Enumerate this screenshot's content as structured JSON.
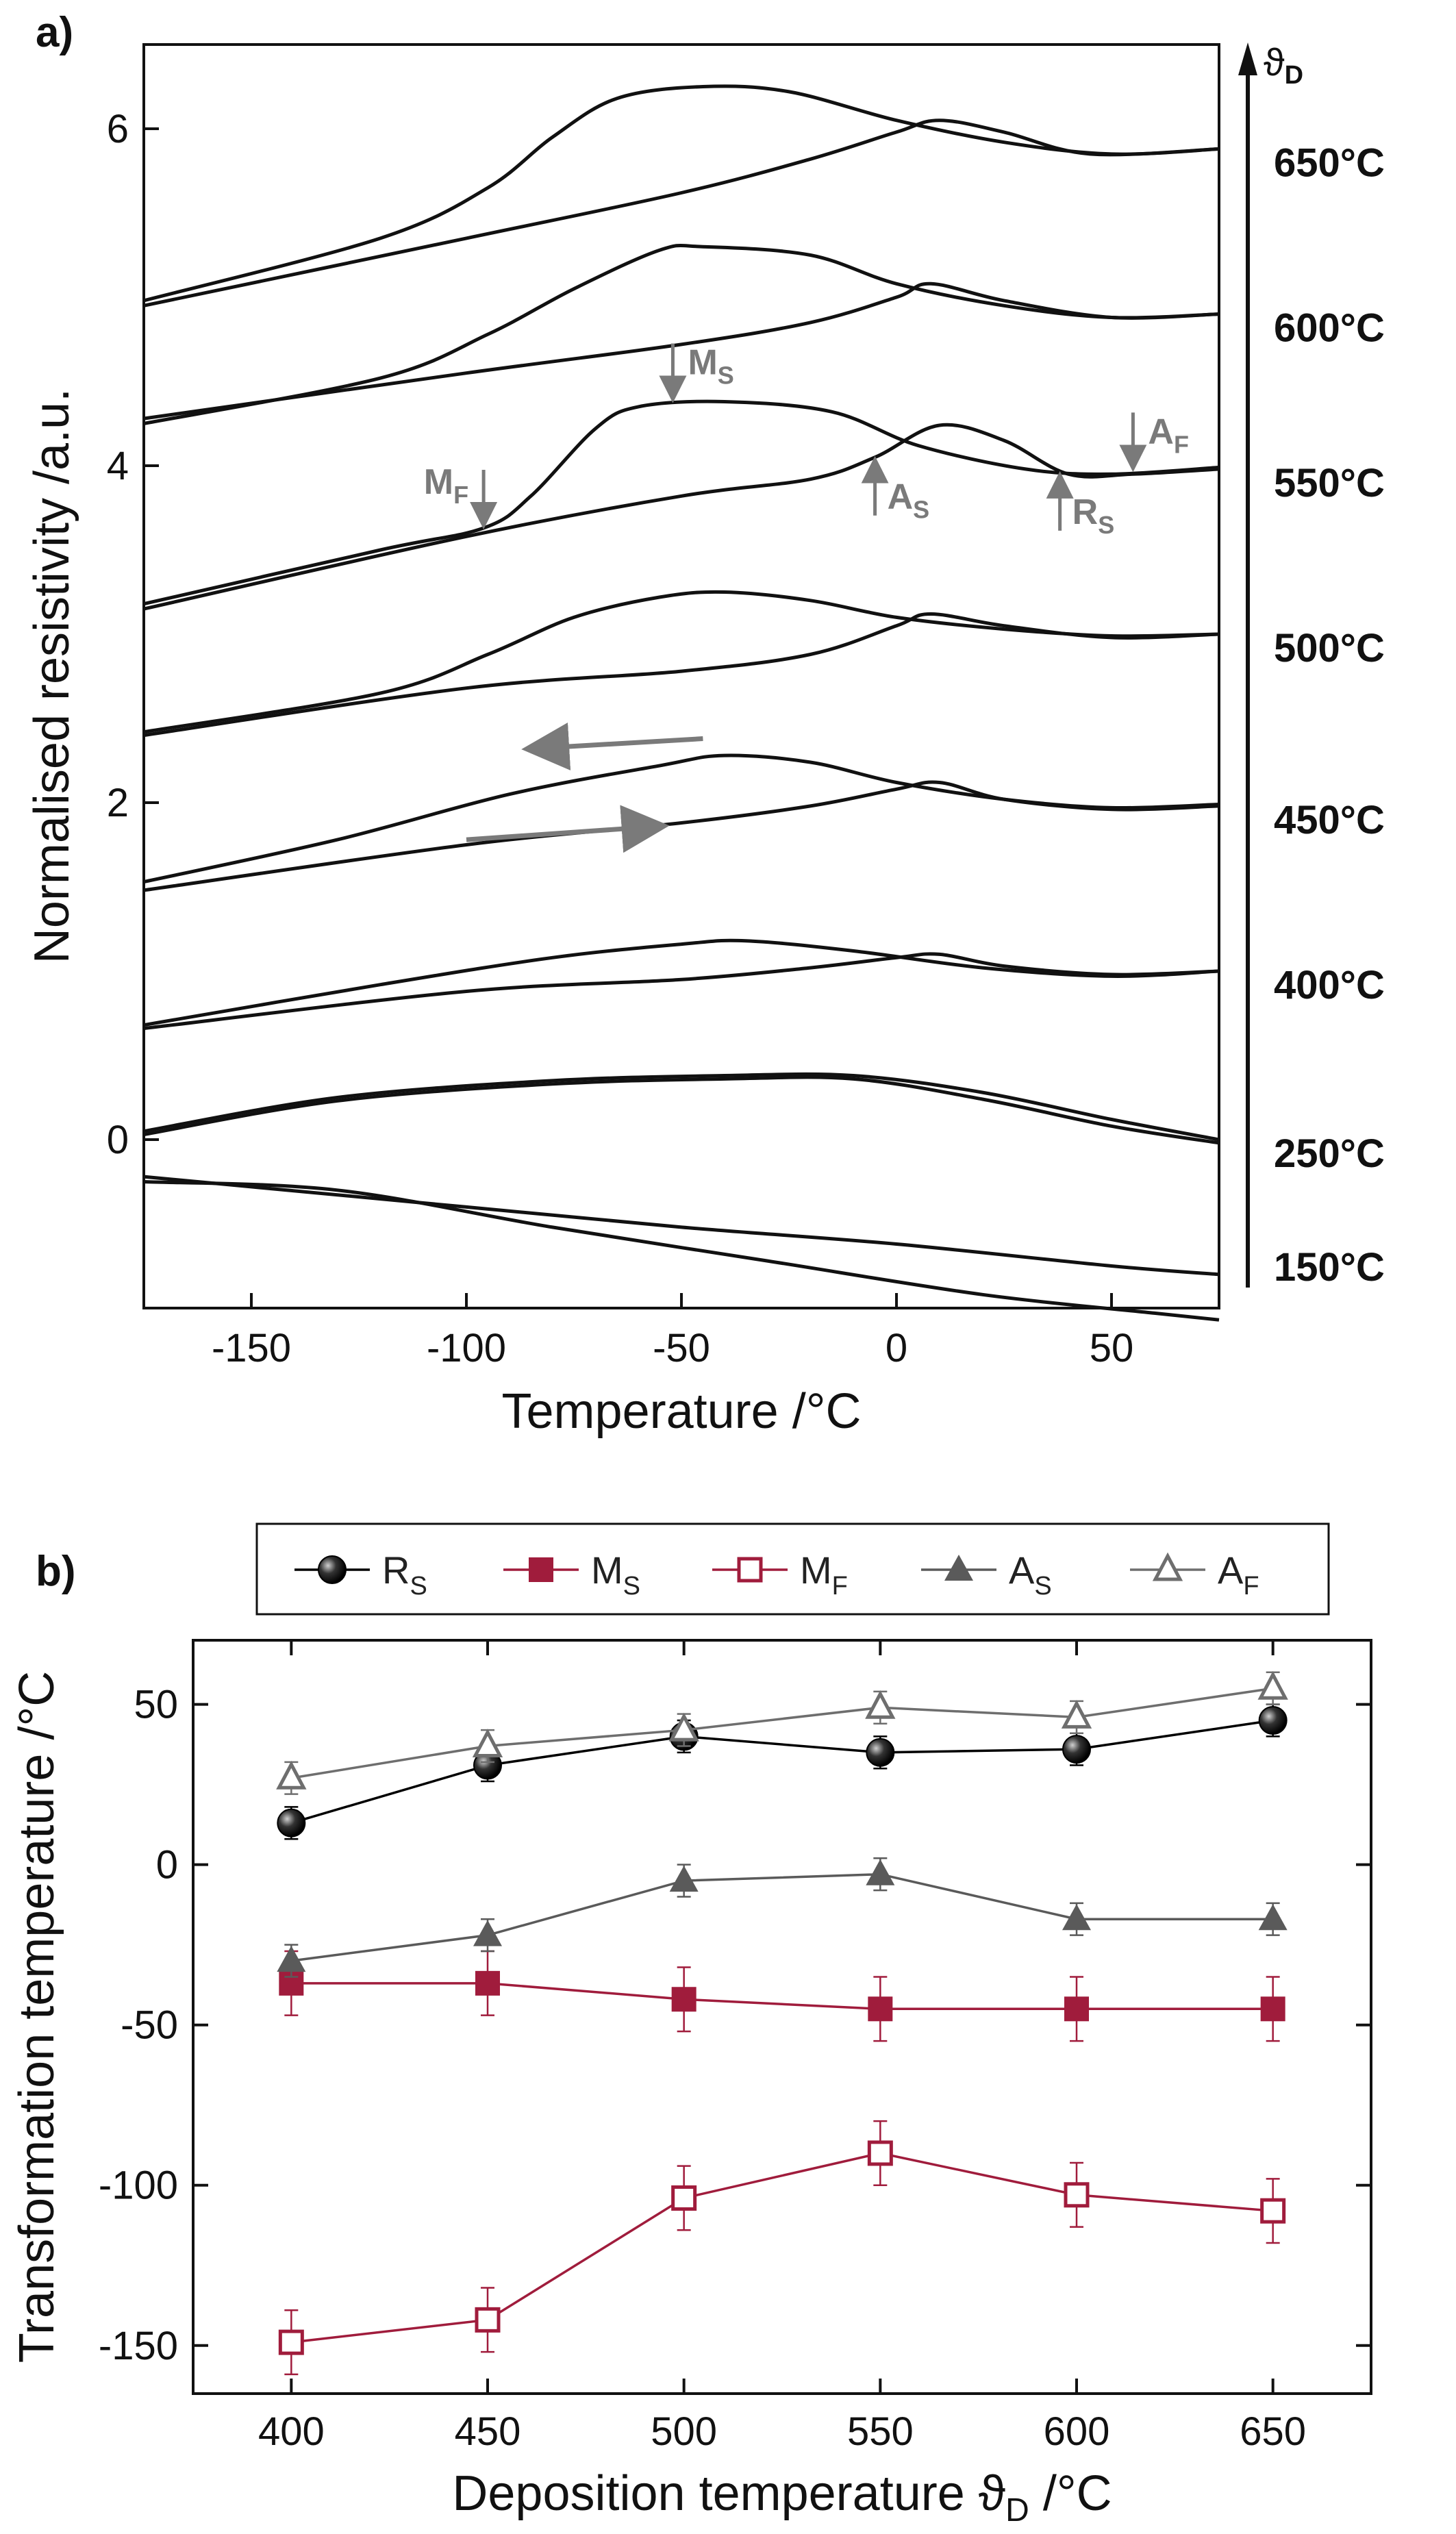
{
  "chart_data": [
    {
      "type": "line",
      "panel_label": "a)",
      "xlabel": "Temperature /°C",
      "ylabel": "Normalised resistivity /a.u.",
      "xlim": [
        -175,
        75
      ],
      "ylim": [
        -1.0,
        6.5
      ],
      "xticks": [
        "-150",
        "-100",
        "-50",
        "0",
        "50"
      ],
      "yticks": [
        "0",
        "2",
        "4",
        "6"
      ],
      "series_axis_label": "ϑD",
      "series_axis_symbol": "ϑ",
      "series_axis_sub": "D",
      "series": [
        {
          "name": "150°C",
          "heating": [
            [
              -175,
              -0.22
            ],
            [
              -150,
              -0.28
            ],
            [
              -100,
              -0.4
            ],
            [
              -50,
              -0.52
            ],
            [
              0,
              -0.62
            ],
            [
              50,
              -0.75
            ],
            [
              75,
              -0.8
            ]
          ],
          "cooling": [
            [
              -175,
              -0.25
            ],
            [
              -130,
              -0.3
            ],
            [
              -80,
              -0.52
            ],
            [
              -30,
              -0.72
            ],
            [
              20,
              -0.92
            ],
            [
              60,
              -1.03
            ],
            [
              75,
              -1.07
            ]
          ]
        },
        {
          "name": "250°C",
          "heating": [
            [
              -175,
              0.05
            ],
            [
              -130,
              0.25
            ],
            [
              -80,
              0.35
            ],
            [
              -40,
              0.38
            ],
            [
              -10,
              0.38
            ],
            [
              20,
              0.28
            ],
            [
              50,
              0.12
            ],
            [
              75,
              0.0
            ]
          ],
          "cooling": [
            [
              -175,
              0.03
            ],
            [
              -130,
              0.23
            ],
            [
              -80,
              0.33
            ],
            [
              -40,
              0.36
            ],
            [
              -10,
              0.36
            ],
            [
              20,
              0.24
            ],
            [
              50,
              0.08
            ],
            [
              75,
              -0.02
            ]
          ]
        },
        {
          "name": "400°C",
          "heating": [
            [
              -175,
              0.66
            ],
            [
              -100,
              0.88
            ],
            [
              -50,
              0.95
            ],
            [
              -20,
              1.02
            ],
            [
              0,
              1.08
            ],
            [
              10,
              1.1
            ],
            [
              25,
              1.03
            ],
            [
              50,
              0.98
            ],
            [
              75,
              1.0
            ]
          ],
          "cooling": [
            [
              -175,
              0.68
            ],
            [
              -120,
              0.92
            ],
            [
              -80,
              1.08
            ],
            [
              -50,
              1.16
            ],
            [
              -35,
              1.18
            ],
            [
              -10,
              1.12
            ],
            [
              20,
              1.02
            ],
            [
              50,
              0.97
            ],
            [
              75,
              1.0
            ]
          ]
        },
        {
          "name": "450°C",
          "heating": [
            [
              -175,
              1.48
            ],
            [
              -100,
              1.75
            ],
            [
              -50,
              1.88
            ],
            [
              -20,
              1.98
            ],
            [
              0,
              2.08
            ],
            [
              10,
              2.12
            ],
            [
              25,
              2.02
            ],
            [
              50,
              1.96
            ],
            [
              75,
              1.98
            ]
          ],
          "cooling": [
            [
              -175,
              1.53
            ],
            [
              -130,
              1.78
            ],
            [
              -90,
              2.05
            ],
            [
              -55,
              2.22
            ],
            [
              -40,
              2.28
            ],
            [
              -20,
              2.24
            ],
            [
              0,
              2.12
            ],
            [
              25,
              2.02
            ],
            [
              50,
              1.97
            ],
            [
              75,
              1.99
            ]
          ]
        },
        {
          "name": "500°C",
          "heating": [
            [
              -175,
              2.4
            ],
            [
              -100,
              2.68
            ],
            [
              -50,
              2.78
            ],
            [
              -20,
              2.88
            ],
            [
              0,
              3.05
            ],
            [
              8,
              3.12
            ],
            [
              25,
              3.05
            ],
            [
              50,
              2.98
            ],
            [
              75,
              3.0
            ]
          ],
          "cooling": [
            [
              -175,
              2.42
            ],
            [
              -120,
              2.65
            ],
            [
              -95,
              2.88
            ],
            [
              -75,
              3.1
            ],
            [
              -55,
              3.22
            ],
            [
              -40,
              3.25
            ],
            [
              -20,
              3.2
            ],
            [
              0,
              3.1
            ],
            [
              25,
              3.03
            ],
            [
              50,
              2.99
            ],
            [
              75,
              3.0
            ]
          ]
        },
        {
          "name": "550°C",
          "heating": [
            [
              -175,
              3.15
            ],
            [
              -100,
              3.58
            ],
            [
              -50,
              3.82
            ],
            [
              -20,
              3.92
            ],
            [
              -5,
              4.05
            ],
            [
              10,
              4.24
            ],
            [
              25,
              4.15
            ],
            [
              40,
              3.95
            ],
            [
              55,
              3.95
            ],
            [
              75,
              3.98
            ]
          ],
          "cooling": [
            [
              -175,
              3.18
            ],
            [
              -120,
              3.5
            ],
            [
              -96,
              3.63
            ],
            [
              -85,
              3.82
            ],
            [
              -70,
              4.22
            ],
            [
              -60,
              4.35
            ],
            [
              -40,
              4.38
            ],
            [
              -15,
              4.32
            ],
            [
              5,
              4.12
            ],
            [
              30,
              3.98
            ],
            [
              50,
              3.95
            ],
            [
              75,
              3.99
            ]
          ]
        },
        {
          "name": "600°C",
          "heating": [
            [
              -175,
              4.28
            ],
            [
              -100,
              4.55
            ],
            [
              -50,
              4.72
            ],
            [
              -20,
              4.85
            ],
            [
              0,
              5.0
            ],
            [
              8,
              5.08
            ],
            [
              25,
              4.98
            ],
            [
              50,
              4.88
            ],
            [
              75,
              4.9
            ]
          ],
          "cooling": [
            [
              -175,
              4.25
            ],
            [
              -120,
              4.52
            ],
            [
              -95,
              4.78
            ],
            [
              -75,
              5.05
            ],
            [
              -55,
              5.28
            ],
            [
              -45,
              5.3
            ],
            [
              -20,
              5.25
            ],
            [
              0,
              5.08
            ],
            [
              25,
              4.95
            ],
            [
              50,
              4.88
            ],
            [
              75,
              4.9
            ]
          ]
        },
        {
          "name": "650°C",
          "heating": [
            [
              -175,
              4.95
            ],
            [
              -100,
              5.35
            ],
            [
              -50,
              5.62
            ],
            [
              -20,
              5.82
            ],
            [
              0,
              5.98
            ],
            [
              10,
              6.05
            ],
            [
              25,
              5.98
            ],
            [
              45,
              5.85
            ],
            [
              75,
              5.88
            ]
          ],
          "cooling": [
            [
              -175,
              4.98
            ],
            [
              -120,
              5.35
            ],
            [
              -95,
              5.65
            ],
            [
              -80,
              5.95
            ],
            [
              -65,
              6.18
            ],
            [
              -45,
              6.25
            ],
            [
              -25,
              6.22
            ],
            [
              0,
              6.05
            ],
            [
              25,
              5.92
            ],
            [
              50,
              5.85
            ],
            [
              75,
              5.88
            ]
          ]
        }
      ],
      "direction_arrows": [
        {
          "label": "cooling",
          "x0": -45,
          "y0": 2.38,
          "x1": -85,
          "y1": 2.32
        },
        {
          "label": "heating",
          "x0": -100,
          "y0": 1.78,
          "x1": -55,
          "y1": 1.86
        }
      ],
      "annotations": [
        {
          "symbol": "M",
          "sub": "S",
          "x": -52,
          "y_tip": 4.38,
          "direction": "down"
        },
        {
          "symbol": "M",
          "sub": "F",
          "x": -96,
          "y_tip": 3.63,
          "direction": "down"
        },
        {
          "symbol": "A",
          "sub": "S",
          "x": -5,
          "y_tip": 4.05,
          "direction": "up"
        },
        {
          "symbol": "R",
          "sub": "S",
          "x": 38,
          "y_tip": 3.96,
          "direction": "up"
        },
        {
          "symbol": "A",
          "sub": "F",
          "x": 55,
          "y_tip": 3.97,
          "direction": "down"
        }
      ]
    },
    {
      "type": "line",
      "panel_label": "b)",
      "xlabel": "Deposition temperature ϑD /°C",
      "xlabel_main": "Deposition temperature ϑ",
      "xlabel_sub": "D",
      "xlabel_tail": " /°C",
      "ylabel": "Transformation temperature /°C",
      "xlim": [
        375,
        675
      ],
      "ylim": [
        -165,
        70
      ],
      "categories": [
        400,
        450,
        500,
        550,
        600,
        650
      ],
      "xticks": [
        "400",
        "450",
        "500",
        "550",
        "600",
        "650"
      ],
      "yticks": [
        "50",
        "0",
        "-50",
        "-100",
        "-150"
      ],
      "series": [
        {
          "name": "RS",
          "symbol": "R",
          "sub": "S",
          "color": "#000000",
          "marker": "sphere",
          "values": [
            13,
            31,
            40,
            35,
            36,
            45
          ],
          "err": [
            5,
            5,
            5,
            5,
            5,
            5
          ]
        },
        {
          "name": "MS",
          "symbol": "M",
          "sub": "S",
          "color": "#a01c3c",
          "marker": "square",
          "values": [
            -37,
            -37,
            -42,
            -45,
            -45,
            -45
          ],
          "err": [
            10,
            10,
            10,
            10,
            10,
            10
          ]
        },
        {
          "name": "MF",
          "symbol": "M",
          "sub": "F",
          "color": "#a01c3c",
          "marker": "square-open",
          "values": [
            -149,
            -142,
            -104,
            -90,
            -103,
            -108
          ],
          "err": [
            10,
            10,
            10,
            10,
            10,
            10
          ]
        },
        {
          "name": "AS",
          "symbol": "A",
          "sub": "S",
          "color": "#5a5a5a",
          "marker": "triangle",
          "values": [
            -30,
            -22,
            -5,
            -3,
            -17,
            -17
          ],
          "err": [
            5,
            5,
            5,
            5,
            5,
            5
          ]
        },
        {
          "name": "AF",
          "symbol": "A",
          "sub": "F",
          "color": "#6e6e6e",
          "marker": "triangle-open",
          "values": [
            27,
            37,
            42,
            49,
            46,
            55
          ],
          "err": [
            5,
            5,
            5,
            5,
            5,
            5
          ]
        }
      ],
      "legend_location": "top-center"
    }
  ]
}
